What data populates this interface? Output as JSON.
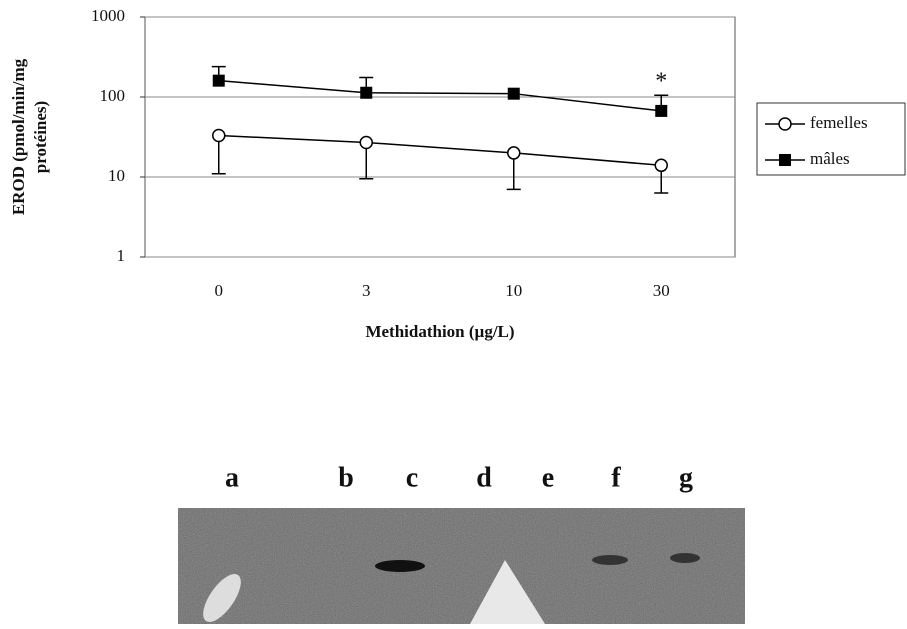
{
  "chart_data": {
    "type": "line",
    "x_label": "Methidathion (µg/L)",
    "y_label": [
      "EROD (pmol/min/mg",
      "protéines)"
    ],
    "categories": [
      "0",
      "3",
      "10",
      "30"
    ],
    "ylim": [
      1,
      1000
    ],
    "yticks": [
      1,
      10,
      100,
      1000
    ],
    "log_scale": true,
    "grid": true,
    "legend": "right",
    "series": [
      {
        "name": "femelles",
        "color": "#000000",
        "marker": "open-circle",
        "values": [
          33,
          27,
          20,
          14
        ],
        "errors": [
          22,
          17.5,
          13,
          7.7
        ],
        "error_direction": "down"
      },
      {
        "name": "mâles",
        "color": "#000000",
        "marker": "filled-square",
        "values": [
          160,
          113,
          110,
          67
        ],
        "errors": [
          80,
          62,
          null,
          38
        ],
        "error_direction": "up"
      }
    ],
    "annotations": [
      {
        "text": "*",
        "category": 3,
        "value": 150
      }
    ]
  },
  "gel": {
    "lanes": [
      "a",
      "b",
      "c",
      "d",
      "e",
      "f",
      "g"
    ]
  }
}
